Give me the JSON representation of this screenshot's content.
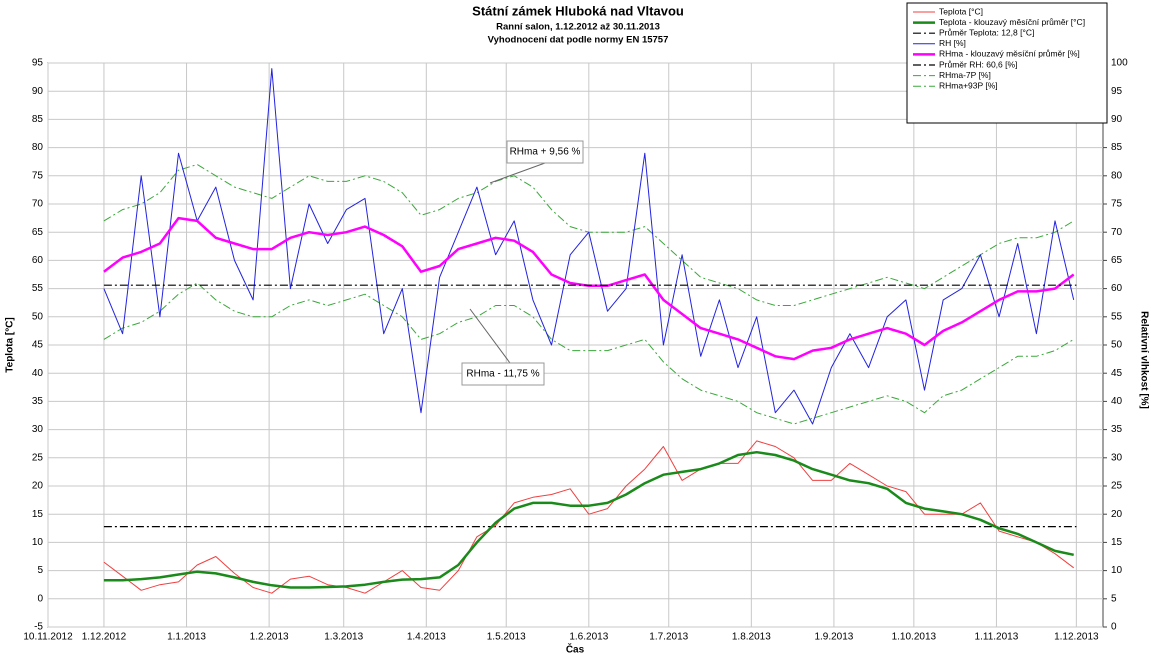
{
  "chart_data": {
    "type": "line",
    "title": "Státní zámek Hluboká nad Vltavou",
    "subtitle": "Ranní salon, 1.12.2012 až 30.11.2013",
    "subtitle2": "Vyhodnocení dat podle normy EN 15757",
    "x_label": "Čas",
    "y_label": "Teplota [°C]",
    "y2_label": "Relativní vlhkost [%]",
    "xlim": [
      "2012-11-10",
      "2013-12-11"
    ],
    "xticks": [
      {
        "value": "2012-11-10",
        "label": "10.11.2012"
      },
      {
        "value": "2012-12-01",
        "label": "1.12.2012"
      },
      {
        "value": "2013-01-01",
        "label": "1.1.2013"
      },
      {
        "value": "2013-02-01",
        "label": "1.2.2013"
      },
      {
        "value": "2013-03-01",
        "label": "1.3.2013"
      },
      {
        "value": "2013-04-01",
        "label": "1.4.2013"
      },
      {
        "value": "2013-05-01",
        "label": "1.5.2013"
      },
      {
        "value": "2013-06-01",
        "label": "1.6.2013"
      },
      {
        "value": "2013-07-01",
        "label": "1.7.2013"
      },
      {
        "value": "2013-08-01",
        "label": "1.8.2013"
      },
      {
        "value": "2013-09-01",
        "label": "1.9.2013"
      },
      {
        "value": "2013-10-01",
        "label": "1.10.2013"
      },
      {
        "value": "2013-11-01",
        "label": "1.11.2013"
      },
      {
        "value": "2013-12-01",
        "label": "1.12.2013"
      }
    ],
    "ylim": [
      -5,
      95
    ],
    "yticks": [
      -5,
      0,
      5,
      10,
      15,
      20,
      25,
      30,
      35,
      40,
      45,
      50,
      55,
      60,
      65,
      70,
      75,
      80,
      85,
      90,
      95
    ],
    "y2lim": [
      0,
      100
    ],
    "y2ticks": [
      0,
      5,
      10,
      15,
      20,
      25,
      30,
      35,
      40,
      45,
      50,
      55,
      60,
      65,
      70,
      75,
      80,
      85,
      90,
      95,
      100
    ],
    "grid": true,
    "legend": "top-right",
    "annotations": [
      "RHma + 9,56 %",
      "RHma - 11,75 %"
    ],
    "x": [
      "2012-12-01",
      "2012-12-08",
      "2012-12-15",
      "2012-12-22",
      "2012-12-29",
      "2013-01-05",
      "2013-01-12",
      "2013-01-19",
      "2013-01-26",
      "2013-02-02",
      "2013-02-09",
      "2013-02-16",
      "2013-02-23",
      "2013-03-02",
      "2013-03-09",
      "2013-03-16",
      "2013-03-23",
      "2013-03-30",
      "2013-04-06",
      "2013-04-13",
      "2013-04-20",
      "2013-04-27",
      "2013-05-04",
      "2013-05-11",
      "2013-05-18",
      "2013-05-25",
      "2013-06-01",
      "2013-06-08",
      "2013-06-15",
      "2013-06-22",
      "2013-06-29",
      "2013-07-06",
      "2013-07-13",
      "2013-07-20",
      "2013-07-27",
      "2013-08-03",
      "2013-08-10",
      "2013-08-17",
      "2013-08-24",
      "2013-08-31",
      "2013-09-07",
      "2013-09-14",
      "2013-09-21",
      "2013-09-28",
      "2013-10-05",
      "2013-10-12",
      "2013-10-19",
      "2013-10-26",
      "2013-11-02",
      "2013-11-09",
      "2013-11-16",
      "2013-11-23",
      "2013-11-30"
    ],
    "series": [
      {
        "name": "RHma-7P [%]",
        "color": "#3aa83a",
        "width": 1,
        "style": "dashdot",
        "axis": "y2",
        "values": [
          51,
          53,
          54,
          56,
          59,
          61,
          58,
          56,
          55,
          55,
          57,
          58,
          57,
          58,
          59,
          57,
          55,
          51,
          52,
          54,
          55,
          57,
          57,
          55,
          51,
          49,
          49,
          49,
          50,
          51,
          47,
          44,
          42,
          41,
          40,
          38,
          37,
          36,
          37,
          38,
          39,
          40,
          41,
          40,
          38,
          41,
          42,
          44,
          46,
          48,
          48,
          49,
          51
        ]
      },
      {
        "name": "RHma+93P [%]",
        "color": "#3aa83a",
        "width": 1,
        "style": "dashdot",
        "axis": "y2",
        "values": [
          72,
          74,
          75,
          77,
          81,
          82,
          80,
          78,
          77,
          76,
          78,
          80,
          79,
          79,
          80,
          79,
          77,
          73,
          74,
          76,
          77,
          79,
          80,
          78,
          74,
          71,
          70,
          70,
          70,
          71,
          68,
          65,
          62,
          61,
          60,
          58,
          57,
          57,
          58,
          59,
          60,
          61,
          62,
          61,
          60,
          62,
          64,
          66,
          68,
          69,
          69,
          70,
          72
        ]
      },
      {
        "name": "RH [%]",
        "color": "#2323e0",
        "width": 1,
        "style": "solid",
        "axis": "y2",
        "values": [
          60,
          52,
          80,
          55,
          84,
          72,
          78,
          65,
          58,
          99,
          60,
          75,
          68,
          74,
          76,
          52,
          60,
          38,
          62,
          70,
          78,
          66,
          72,
          58,
          50,
          66,
          70,
          56,
          60,
          84,
          50,
          66,
          48,
          58,
          46,
          55,
          38,
          42,
          36,
          46,
          52,
          46,
          55,
          58,
          42,
          58,
          60,
          66,
          55,
          68,
          52,
          72,
          58
        ]
      },
      {
        "name": "RHma - klouzavý měsíční průměr [%]",
        "color": "#ff00ff",
        "width": 2.5,
        "style": "solid",
        "axis": "y2",
        "values": [
          63,
          65.5,
          66.5,
          68,
          72.5,
          72,
          69,
          68,
          67,
          67,
          69,
          70,
          69.5,
          70,
          71,
          69.5,
          67.5,
          63,
          64,
          67,
          68,
          69,
          68.5,
          66.5,
          62.5,
          61,
          60.5,
          60.5,
          61.5,
          62.5,
          58,
          55.5,
          53,
          52,
          51,
          49.5,
          48,
          47.5,
          49,
          49.5,
          51,
          52,
          53,
          52,
          50,
          52.5,
          54,
          56,
          58,
          59.5,
          59.5,
          60,
          62.5
        ]
      },
      {
        "name": "Průměr RH: 60,6 [%]",
        "color": "#000000",
        "width": 1.2,
        "style": "dashdot",
        "axis": "y2",
        "x": [
          "2012-12-01",
          "2013-12-01"
        ],
        "values": [
          60.6,
          60.6
        ]
      },
      {
        "name": "Průměr Teplota: 12,8 [°C]",
        "color": "#000000",
        "width": 1.2,
        "style": "dashdot",
        "x": [
          "2012-12-01",
          "2013-12-01"
        ],
        "values": [
          12.8,
          12.8
        ]
      },
      {
        "name": "Teplota [°C]",
        "color": "#f04040",
        "width": 1,
        "style": "solid",
        "values": [
          6.5,
          4,
          1.5,
          2.5,
          3,
          6,
          7.5,
          4.5,
          2,
          1,
          3.5,
          4,
          2.5,
          2,
          1,
          3,
          5,
          2,
          1.5,
          5,
          11,
          13,
          17,
          18,
          18.5,
          19.5,
          15,
          16,
          20,
          23,
          27,
          21,
          23,
          24,
          24,
          28,
          27,
          25,
          21,
          21,
          24,
          22,
          20,
          19,
          15,
          15,
          15,
          17,
          12,
          11,
          10,
          8,
          5.5
        ]
      },
      {
        "name": "Teplota - klouzavý měsíční průměr [°C]",
        "color": "#1a8a1a",
        "width": 2.5,
        "style": "solid",
        "values": [
          3.3,
          3.3,
          3.5,
          3.8,
          4.3,
          4.8,
          4.5,
          3.8,
          3,
          2.4,
          2,
          2,
          2.1,
          2.2,
          2.5,
          3,
          3.4,
          3.5,
          3.8,
          6,
          10,
          13.5,
          16,
          17,
          17,
          16.5,
          16.5,
          17,
          18.5,
          20.5,
          22,
          22.5,
          23,
          24,
          25.5,
          26,
          25.5,
          24.5,
          23,
          22,
          21,
          20.5,
          19.5,
          17,
          16,
          15.5,
          15,
          14,
          12.5,
          11.5,
          10,
          8.5,
          7.8
        ]
      }
    ],
    "legend_order": [
      6,
      7,
      5,
      2,
      3,
      4,
      0,
      1
    ]
  }
}
